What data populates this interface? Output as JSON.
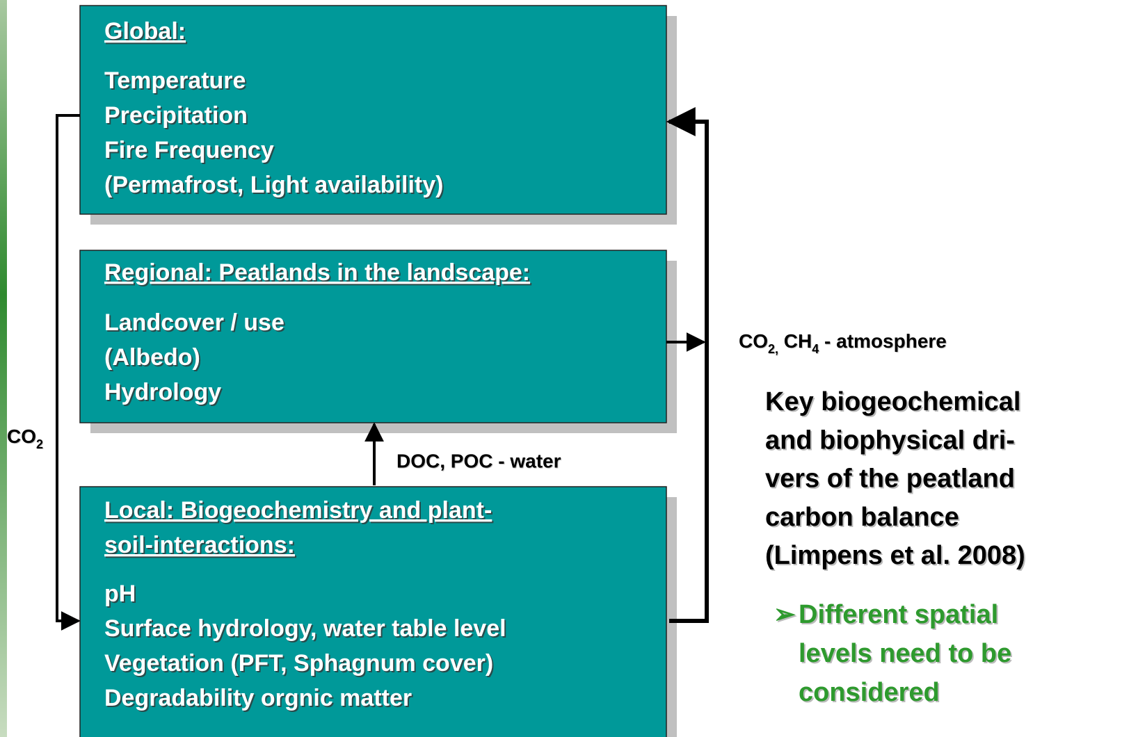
{
  "boxes": [
    {
      "title": [
        "Global:"
      ],
      "items": [
        "Temperature",
        "Precipitation",
        "Fire Frequency",
        "(Permafrost, Light availability)"
      ]
    },
    {
      "title": [
        "Regional: Peatlands in the landscape:"
      ],
      "items": [
        "Landcover / use",
        "(Albedo)",
        "Hydrology"
      ]
    },
    {
      "title": [
        "Local: Biogeochemistry and plant-",
        "soil-interactions:"
      ],
      "items": [
        "pH",
        "Surface hydrology, water table level",
        "Vegetation (PFT, Sphagnum cover)",
        "Degradability orgnic matter"
      ]
    }
  ],
  "co2_label": [
    "CO",
    "2"
  ],
  "water_label": "DOC, POC - water",
  "atmosphere_label": [
    "CO",
    "2,",
    " CH",
    "4",
    " - atmosphere"
  ],
  "side_text": [
    "Key biogeochemical",
    "and biophysical dri-",
    "vers of the peatland",
    "carbon balance",
    "(Limpens et al. 2008)"
  ],
  "bullet": {
    "symbol": "➢",
    "lines": [
      "Different spatial",
      "levels need to be",
      "considered"
    ]
  }
}
